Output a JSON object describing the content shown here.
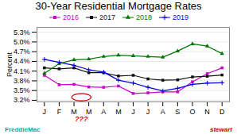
{
  "chart_data": {
    "type": "line",
    "title": "30-Year Residential Mortgage Rates",
    "ylabel": "Percent",
    "categories": [
      "J",
      "F",
      "M",
      "M",
      "A",
      "M",
      "J",
      "J",
      "A",
      "S",
      "O",
      "N",
      "D"
    ],
    "series": [
      {
        "name": "2016",
        "color": "#cc00cc",
        "marker": "square",
        "values": [
          3.97,
          3.68,
          3.69,
          3.61,
          3.6,
          3.64,
          3.41,
          3.43,
          3.46,
          3.46,
          3.77,
          4.02,
          4.2
        ]
      },
      {
        "name": "2017",
        "color": "#111111",
        "marker": "square",
        "values": [
          4.2,
          4.17,
          4.2,
          4.05,
          4.05,
          3.95,
          3.97,
          3.86,
          3.82,
          3.83,
          3.92,
          3.94,
          3.98
        ]
      },
      {
        "name": "2018",
        "color": "#007700",
        "marker": "triangle",
        "values": [
          4.03,
          4.33,
          4.45,
          4.47,
          4.55,
          4.59,
          4.57,
          4.55,
          4.53,
          4.72,
          4.94,
          4.87,
          4.64
        ]
      },
      {
        "name": "2019",
        "color": "#0000dd",
        "marker": "plus",
        "values": [
          4.46,
          4.37,
          4.28,
          4.14,
          4.07,
          3.82,
          3.73,
          3.6,
          3.49,
          3.57,
          3.69,
          3.73,
          3.74
        ]
      }
    ],
    "ylim": [
      3.15,
      5.45
    ],
    "yticks": [
      {
        "value": 3.2,
        "label": "3.2%"
      },
      {
        "value": 3.5,
        "label": "3.5%"
      },
      {
        "value": 3.8,
        "label": "3.8%"
      },
      {
        "value": 4.1,
        "label": "4.1%"
      },
      {
        "value": 4.4,
        "label": "4.4%"
      },
      {
        "value": 4.7,
        "label": "4.7%"
      },
      {
        "value": 5.0,
        "label": "5.0%"
      },
      {
        "value": 5.3,
        "label": "5.3%"
      }
    ],
    "grid": true,
    "legend": "top",
    "annotations": [
      {
        "type": "ellipse",
        "x": 2.5,
        "y": 3.295,
        "width": 1.3,
        "height": 0.22,
        "color": "#cc0000"
      },
      {
        "text": "???",
        "x": 2.5,
        "color": "#cc0000"
      },
      {
        "text": "FreddieMac",
        "position": "bottom left",
        "color": "#00aaaa"
      },
      {
        "text": "stewart",
        "position": "bottom right",
        "color": "#cc0000"
      }
    ]
  }
}
